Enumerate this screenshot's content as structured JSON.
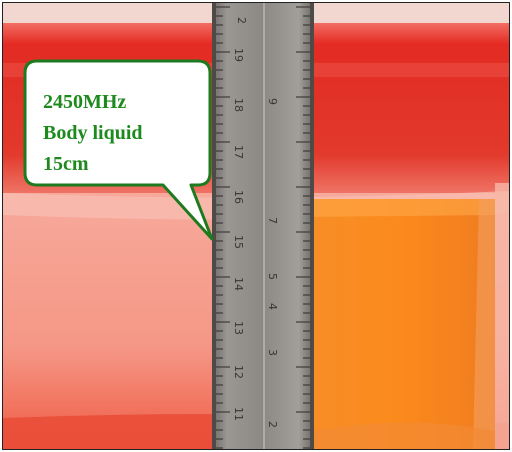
{
  "callout": {
    "lines": [
      "2450MHz",
      "Body liquid",
      "15cm"
    ],
    "text_color": "#1e8a1e",
    "border_color": "#1e7a1e",
    "fill_color": "#ffffff"
  },
  "ruler": {
    "visible_numbers": [
      "2",
      "19",
      "18",
      "17",
      "16",
      "15",
      "14",
      "13",
      "12",
      "11",
      "9",
      "7",
      "5",
      "4",
      "3",
      "2"
    ]
  },
  "colors": {
    "liquid_pink": "#f6a293",
    "container_red": "#e23c2e",
    "orange_block": "#f77d1c",
    "ruler_gray": "#8e8a86"
  }
}
